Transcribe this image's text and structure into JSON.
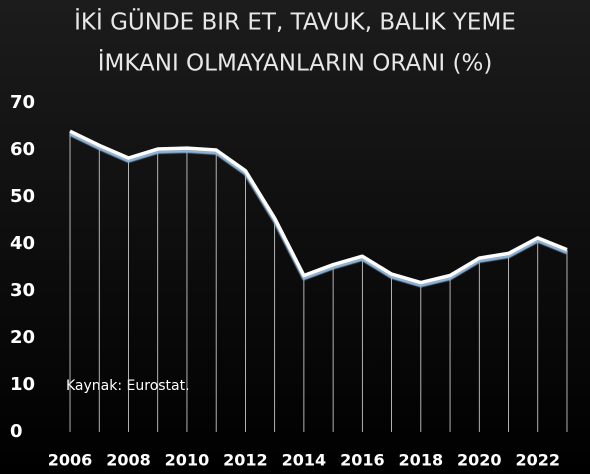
{
  "chart_data": {
    "type": "line",
    "title": [
      "İKİ GÜNDE BIR ET, TAVUK, BALIK YEME",
      "İMKANI OLMAYANLARIN ORANI (%)"
    ],
    "annotation": "Kaynak: Eurostat.",
    "x": [
      2006,
      2007,
      2008,
      2009,
      2010,
      2011,
      2012,
      2013,
      2014,
      2015,
      2016,
      2017,
      2018,
      2019,
      2020,
      2021,
      2022,
      2023
    ],
    "series": [
      {
        "color": "#ffffff",
        "values": [
          64,
          61,
          58.3,
          60.2,
          60.4,
          60,
          55.6,
          45.5,
          33.3,
          35.6,
          37.4,
          33.6,
          31.8,
          33.3,
          37,
          38,
          41.3,
          38.8
        ]
      }
    ],
    "xlim": [
      2005.5,
      2023.5
    ],
    "xticks": [
      2006,
      2008,
      2010,
      2012,
      2014,
      2016,
      2018,
      2020,
      2022
    ],
    "ylim": [
      0,
      70
    ],
    "yticks": [
      0,
      10,
      20,
      30,
      40,
      50,
      60,
      70
    ],
    "drop_lines": true
  }
}
